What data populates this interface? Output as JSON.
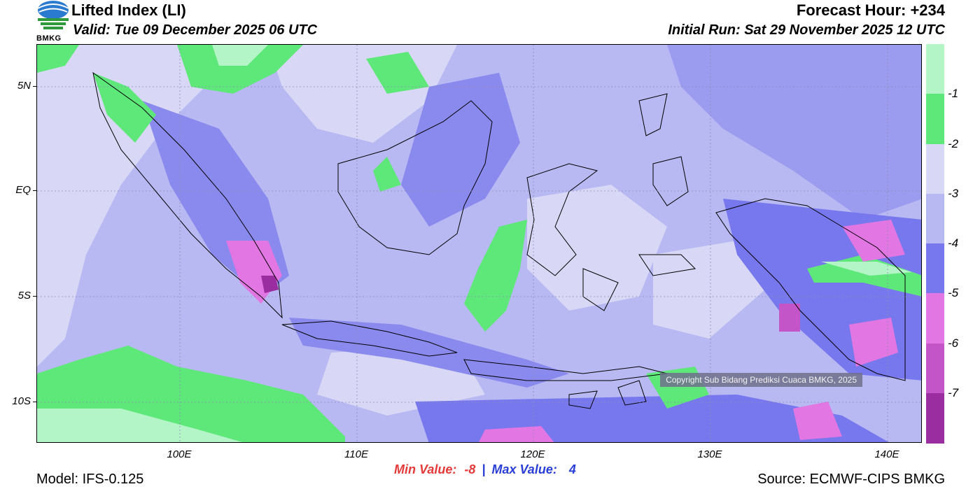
{
  "header": {
    "title": "Lifted Index (LI)",
    "valid": "Valid: Tue 09 December 2025 06 UTC",
    "forecast_hour": "Forecast Hour: +234",
    "initial_run": "Initial Run: Sat 29 November 2025 12 UTC"
  },
  "logo": {
    "text": "BMKG"
  },
  "axes": {
    "y_ticks": [
      "5N",
      "EQ",
      "5S",
      "10S"
    ],
    "x_ticks": [
      "100E",
      "110E",
      "120E",
      "130E",
      "140E"
    ]
  },
  "colorbar": {
    "labels": [
      "-1",
      "-2",
      "-3",
      "-4",
      "-5",
      "-6",
      "-7"
    ],
    "colors": [
      "#b4f5c8",
      "#5ee87a",
      "#d8d8f6",
      "#b8b8f2",
      "#7878ee",
      "#e276e2",
      "#c455c8",
      "#9a2ea0"
    ]
  },
  "stats": {
    "min_label": "Min Value:",
    "min_value": "-8",
    "separator": "|",
    "max_label": "Max Value:",
    "max_value": "4"
  },
  "footer": {
    "model": "Model: IFS-0.125",
    "source": "Source: ECMWF-CIPS BMKG",
    "copyright": "Copyright Sub Bidang Prediksi Cuaca BMKG, 2025"
  }
}
